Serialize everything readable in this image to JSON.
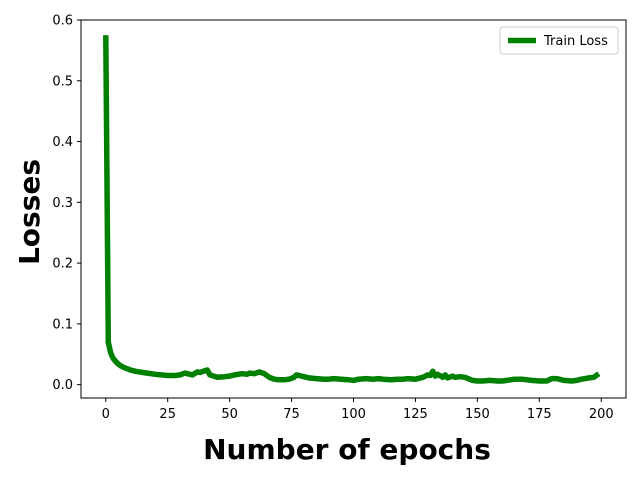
{
  "chart_data": {
    "type": "line",
    "title": "",
    "xlabel": "Number of epochs",
    "ylabel": "Losses",
    "xlim": [
      -10,
      210
    ],
    "ylim": [
      -0.022,
      0.6
    ],
    "xticks": [
      0,
      25,
      50,
      75,
      100,
      125,
      150,
      175,
      200
    ],
    "yticks": [
      0.0,
      0.1,
      0.2,
      0.3,
      0.4,
      0.5,
      0.6
    ],
    "grid": false,
    "legend": "top-right",
    "series": [
      {
        "name": "Train Loss",
        "color": "#008000",
        "x": [
          0,
          1,
          2,
          3,
          4,
          5,
          6,
          8,
          10,
          12,
          15,
          20,
          25,
          28,
          30,
          32,
          35,
          37,
          38,
          40,
          41,
          42,
          45,
          48,
          50,
          52,
          55,
          57,
          58,
          60,
          62,
          64,
          66,
          68,
          70,
          72,
          74,
          76,
          77,
          78,
          80,
          82,
          85,
          88,
          90,
          92,
          95,
          98,
          100,
          102,
          105,
          108,
          110,
          112,
          115,
          118,
          120,
          122,
          125,
          128,
          130,
          131,
          132,
          133,
          134,
          136,
          137,
          138,
          140,
          141,
          143,
          145,
          148,
          150,
          152,
          155,
          158,
          160,
          162,
          165,
          168,
          170,
          172,
          175,
          178,
          180,
          182,
          185,
          188,
          190,
          192,
          195,
          197,
          199
        ],
        "values": [
          0.575,
          0.07,
          0.052,
          0.043,
          0.038,
          0.034,
          0.031,
          0.027,
          0.024,
          0.022,
          0.02,
          0.017,
          0.015,
          0.015,
          0.016,
          0.019,
          0.016,
          0.021,
          0.02,
          0.023,
          0.024,
          0.016,
          0.012,
          0.013,
          0.014,
          0.016,
          0.018,
          0.017,
          0.019,
          0.018,
          0.021,
          0.018,
          0.012,
          0.009,
          0.008,
          0.008,
          0.009,
          0.012,
          0.016,
          0.015,
          0.013,
          0.011,
          0.01,
          0.009,
          0.009,
          0.01,
          0.009,
          0.008,
          0.007,
          0.009,
          0.01,
          0.009,
          0.01,
          0.009,
          0.008,
          0.009,
          0.009,
          0.01,
          0.009,
          0.012,
          0.016,
          0.015,
          0.022,
          0.014,
          0.017,
          0.012,
          0.016,
          0.011,
          0.014,
          0.012,
          0.013,
          0.012,
          0.007,
          0.006,
          0.006,
          0.007,
          0.006,
          0.006,
          0.007,
          0.009,
          0.009,
          0.008,
          0.007,
          0.006,
          0.006,
          0.01,
          0.01,
          0.007,
          0.006,
          0.007,
          0.009,
          0.011,
          0.012,
          0.018
        ]
      }
    ]
  }
}
